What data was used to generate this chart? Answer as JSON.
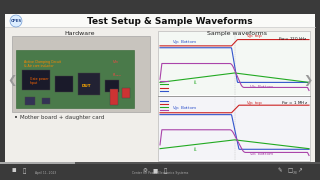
{
  "title": "Test Setup & Sample Waveforms",
  "bg_color": "#3a3a3a",
  "slide_bg": "#f0eeea",
  "header_bg": "#fafaf8",
  "title_color": "#111111",
  "hardware_label": "Hardware",
  "sample_label": "Sample waveforms",
  "bullet": "Mother board + daughter card",
  "freq1_label": "F_sw = 220 kHz",
  "freq2_label": "F_sw = 1 MHz",
  "vgs_bottom_color": "#3355cc",
  "vgs_top_color": "#cc2222",
  "il_color": "#22aa22",
  "vds_bottom_color": "#aa44aa",
  "wf_bg_top": "#e8f0e8",
  "wf_bg_bot": "#e8eef8",
  "toolbar_bg": "#3a3a3a",
  "legend_bg": "#e0e0d8",
  "pcb_green": "#4a7a4a",
  "pcb_gray": "#c8c8c0"
}
